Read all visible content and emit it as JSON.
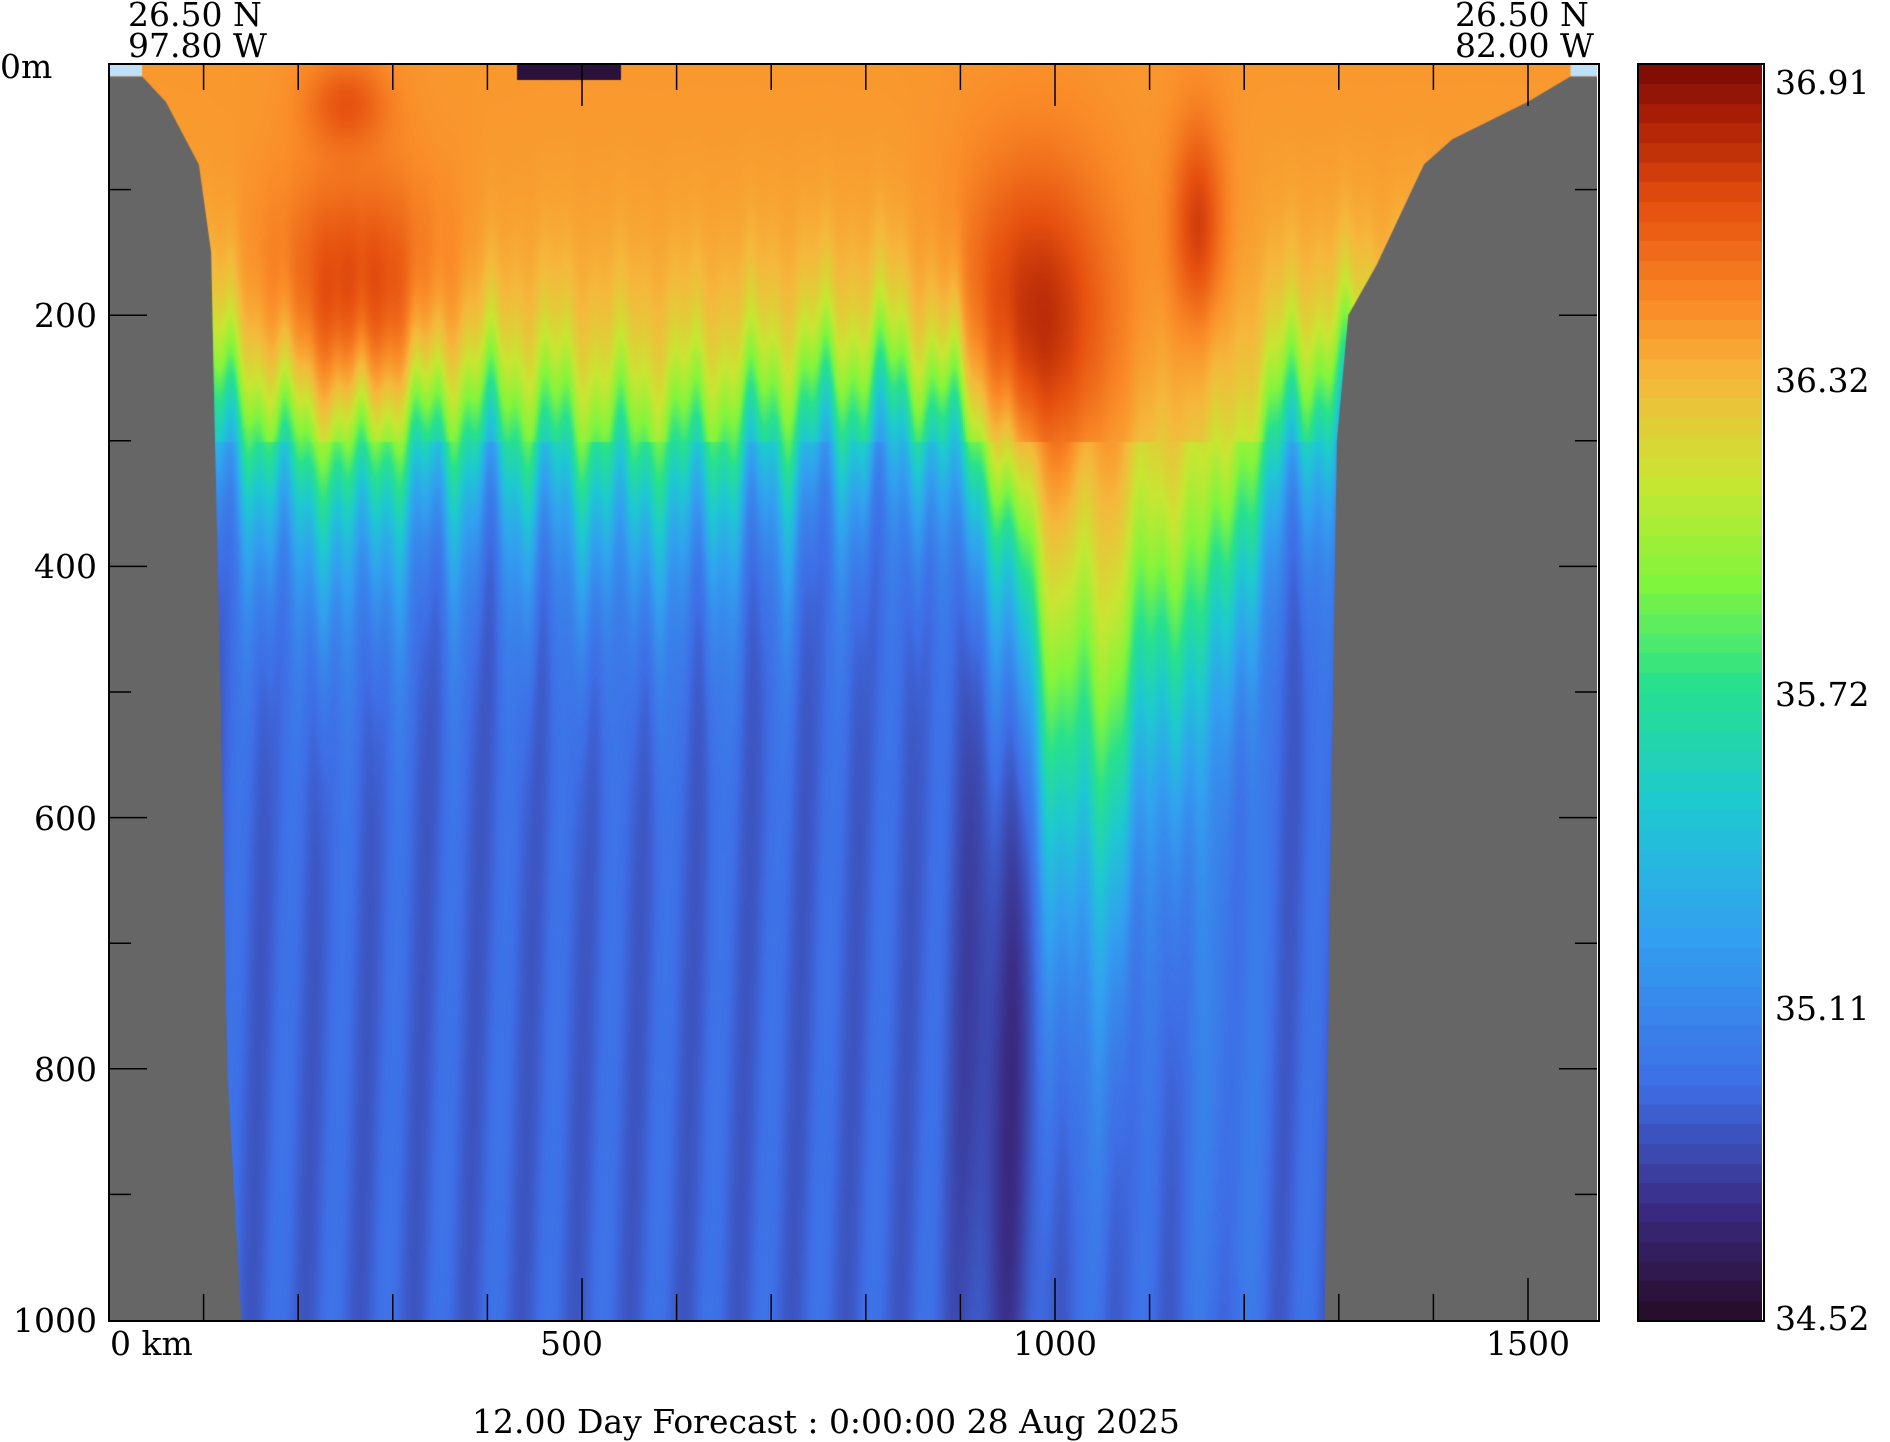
{
  "chart_data": {
    "type": "heatmap",
    "title": "12.00 Day Forecast :  0:00:00  28 Aug 2025",
    "start_point": {
      "lat": "26.50 N",
      "lon": "97.80 W"
    },
    "end_point": {
      "lat": "26.50 N",
      "lon": "82.00 W"
    },
    "xlabel_first": "0 km",
    "x_ticks": [
      500,
      1000,
      1500
    ],
    "x_minor_step_km": 100,
    "xlim_km": [
      0,
      1572
    ],
    "y_first_label": "0m",
    "y_ticks": [
      200,
      400,
      600,
      800,
      1000
    ],
    "y_minor_step_m": 100,
    "ylim_m": [
      0,
      1000
    ],
    "colorbar": {
      "ticks": [
        "36.91",
        "36.32",
        "35.72",
        "35.11",
        "34.52"
      ],
      "range": [
        34.52,
        36.91
      ]
    },
    "colors": {
      "land": "#666666",
      "surface_strip": "#bfe0fb"
    }
  }
}
